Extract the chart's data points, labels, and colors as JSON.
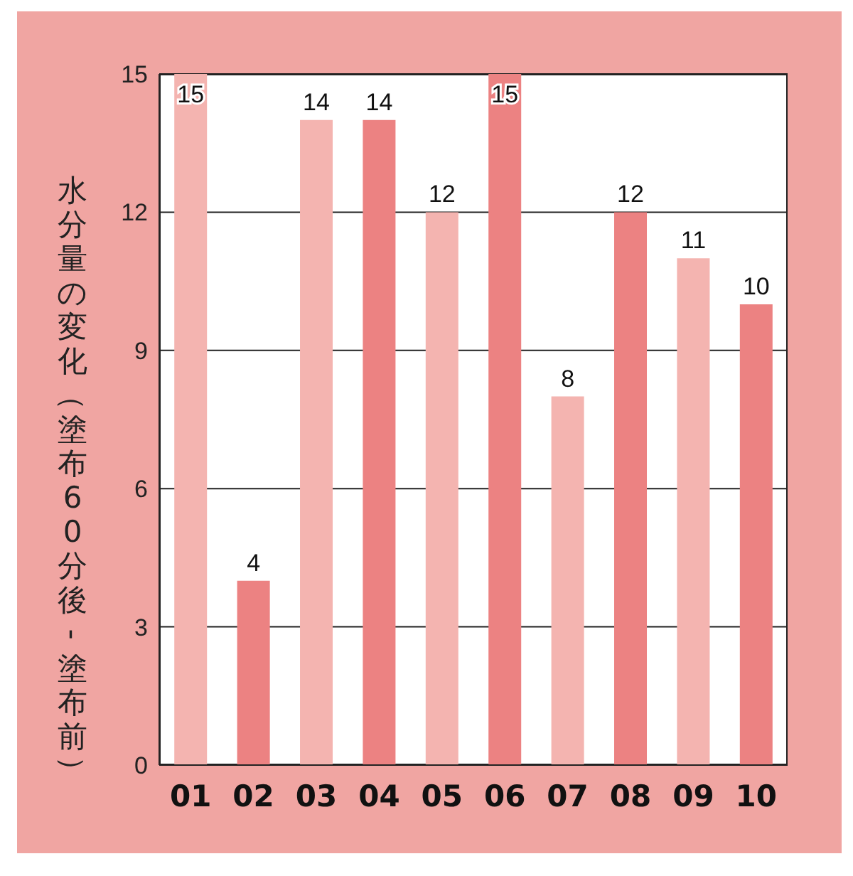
{
  "chart_data": {
    "type": "bar",
    "ylabel": "水分量の変化（塗布60分後-塗布前）",
    "categories": [
      "01",
      "02",
      "03",
      "04",
      "05",
      "06",
      "07",
      "08",
      "09",
      "10"
    ],
    "values": [
      15,
      4,
      14,
      14,
      12,
      15,
      8,
      12,
      11,
      10
    ],
    "colors": [
      "#f4b4b0",
      "#ec8282",
      "#f4b4b0",
      "#ec8282",
      "#f4b4b0",
      "#ec8282",
      "#f4b4b0",
      "#ec8282",
      "#f4b4b0",
      "#ec8282"
    ],
    "ylim": [
      0,
      15
    ],
    "yticks": [
      0,
      3,
      6,
      9,
      12,
      15
    ],
    "grid": "y",
    "data_labels": true
  }
}
